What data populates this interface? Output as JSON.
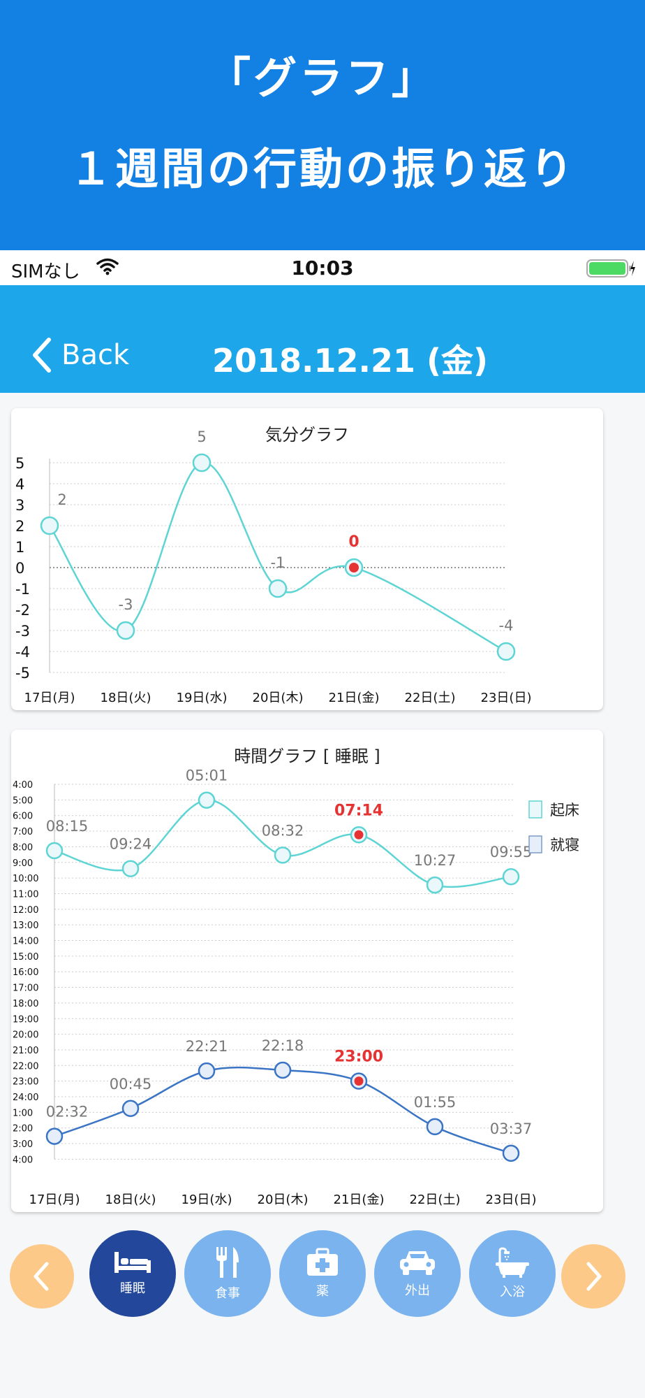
{
  "banner": {
    "line1": "「グラフ」",
    "line2": "１週間の行動の振り返り"
  },
  "status": {
    "carrier": "SIMなし",
    "time": "10:03"
  },
  "nav": {
    "back": "Back",
    "date": "2018.12.21 (金)"
  },
  "colors": {
    "accent": "#1ea6ea",
    "mood": "#5fd4d4",
    "wake": "#5fd4d4",
    "sleep": "#3a74c4",
    "highlight": "#e53333"
  },
  "chart_data": [
    {
      "type": "line",
      "title": "気分グラフ",
      "categories": [
        "17日(月)",
        "18日(火)",
        "19日(水)",
        "20日(木)",
        "21日(金)",
        "22日(土)",
        "23日(日)"
      ],
      "yticks": [
        "5",
        "4",
        "3",
        "2",
        "1",
        "0",
        "-1",
        "-2",
        "-3",
        "-4",
        "-5"
      ],
      "ylim": [
        -5,
        5
      ],
      "series": [
        {
          "values": [
            2,
            -3,
            5,
            -1,
            0,
            null,
            -4
          ],
          "labels": [
            "2",
            "-3",
            "5",
            "-1",
            "0",
            "",
            "-4"
          ]
        }
      ],
      "highlight_index": 4
    },
    {
      "type": "line",
      "title": "時間グラフ [ 睡眠 ]",
      "categories": [
        "17日(月)",
        "18日(火)",
        "19日(水)",
        "20日(木)",
        "21日(金)",
        "22日(土)",
        "23日(日)"
      ],
      "yticks": [
        "4:00",
        "5:00",
        "6:00",
        "7:00",
        "8:00",
        "9:00",
        "10:00",
        "11:00",
        "12:00",
        "13:00",
        "14:00",
        "15:00",
        "16:00",
        "17:00",
        "18:00",
        "19:00",
        "20:00",
        "21:00",
        "22:00",
        "23:00",
        "24:00",
        "1:00",
        "2:00",
        "3:00",
        "4:00"
      ],
      "series": [
        {
          "name": "起床",
          "values": [
            "08:15",
            "09:24",
            "05:01",
            "08:32",
            "07:14",
            "10:27",
            "09:55"
          ]
        },
        {
          "name": "就寝",
          "values": [
            "02:32",
            "00:45",
            "22:21",
            "22:18",
            "23:00",
            "01:55",
            "03:37"
          ]
        }
      ],
      "highlight_index": 4
    }
  ],
  "toolbar": {
    "prev": "previous-arrow",
    "next": "next-arrow",
    "items": [
      {
        "label": "睡眠",
        "icon": "bed-icon",
        "active": true
      },
      {
        "label": "食事",
        "icon": "cutlery-icon",
        "active": false
      },
      {
        "label": "薬",
        "icon": "first-aid-kit-icon",
        "active": false
      },
      {
        "label": "外出",
        "icon": "car-icon",
        "active": false
      },
      {
        "label": "入浴",
        "icon": "bathtub-icon",
        "active": false
      }
    ]
  }
}
